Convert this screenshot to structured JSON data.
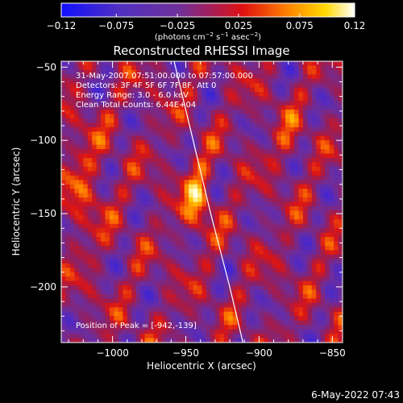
{
  "chart_data": {
    "type": "heatmap",
    "title": "Reconstructed RHESSI Image",
    "xlabel": "Heliocentric X (arcsec)",
    "ylabel": "Heliocentric Y (arcsec)",
    "xlim": [
      -1035,
      -843
    ],
    "ylim": [
      -238,
      -46
    ],
    "xticks": [
      -1000,
      -950,
      -900,
      -850
    ],
    "yticks": [
      -50,
      -100,
      -150,
      -200
    ],
    "xtick_labels": [
      "−1000",
      "−950",
      "−900",
      "−850"
    ],
    "ytick_labels": [
      "−50",
      "−100",
      "−150",
      "−200"
    ],
    "colorbar": {
      "min": -0.12,
      "max": 0.12,
      "ticks": [
        -0.12,
        -0.075,
        -0.025,
        0.025,
        0.075,
        0.12
      ],
      "tick_labels": [
        "−0.12",
        "−0.075",
        "−0.025",
        "0.025",
        "0.075",
        "0.12"
      ],
      "unit_label_parts": [
        "(photons cm",
        "−2",
        " s",
        "−1",
        " asec",
        "−2",
        ")"
      ]
    },
    "peak": [
      -942,
      -139
    ],
    "limb_curve": [
      [
        -958,
        -46
      ],
      [
        -945,
        -100
      ],
      [
        -933,
        -150
      ],
      [
        -920,
        -200
      ],
      [
        -911,
        -238
      ]
    ],
    "annotations": {
      "time_range": "31-May-2007 07:51:00.000 to 07:57:00.000",
      "detectors": "Detectors: 3F 4F 5F 6F 7F 8F, Att 0",
      "energy": "Energy Range: 3.0 - 6.0 keV",
      "clean": "Clean    Total Counts: 6.44E+04",
      "peak_text": "Position of Peak = [-942,-139]"
    }
  },
  "footer": {
    "date": "6-May-2022 07:43"
  }
}
